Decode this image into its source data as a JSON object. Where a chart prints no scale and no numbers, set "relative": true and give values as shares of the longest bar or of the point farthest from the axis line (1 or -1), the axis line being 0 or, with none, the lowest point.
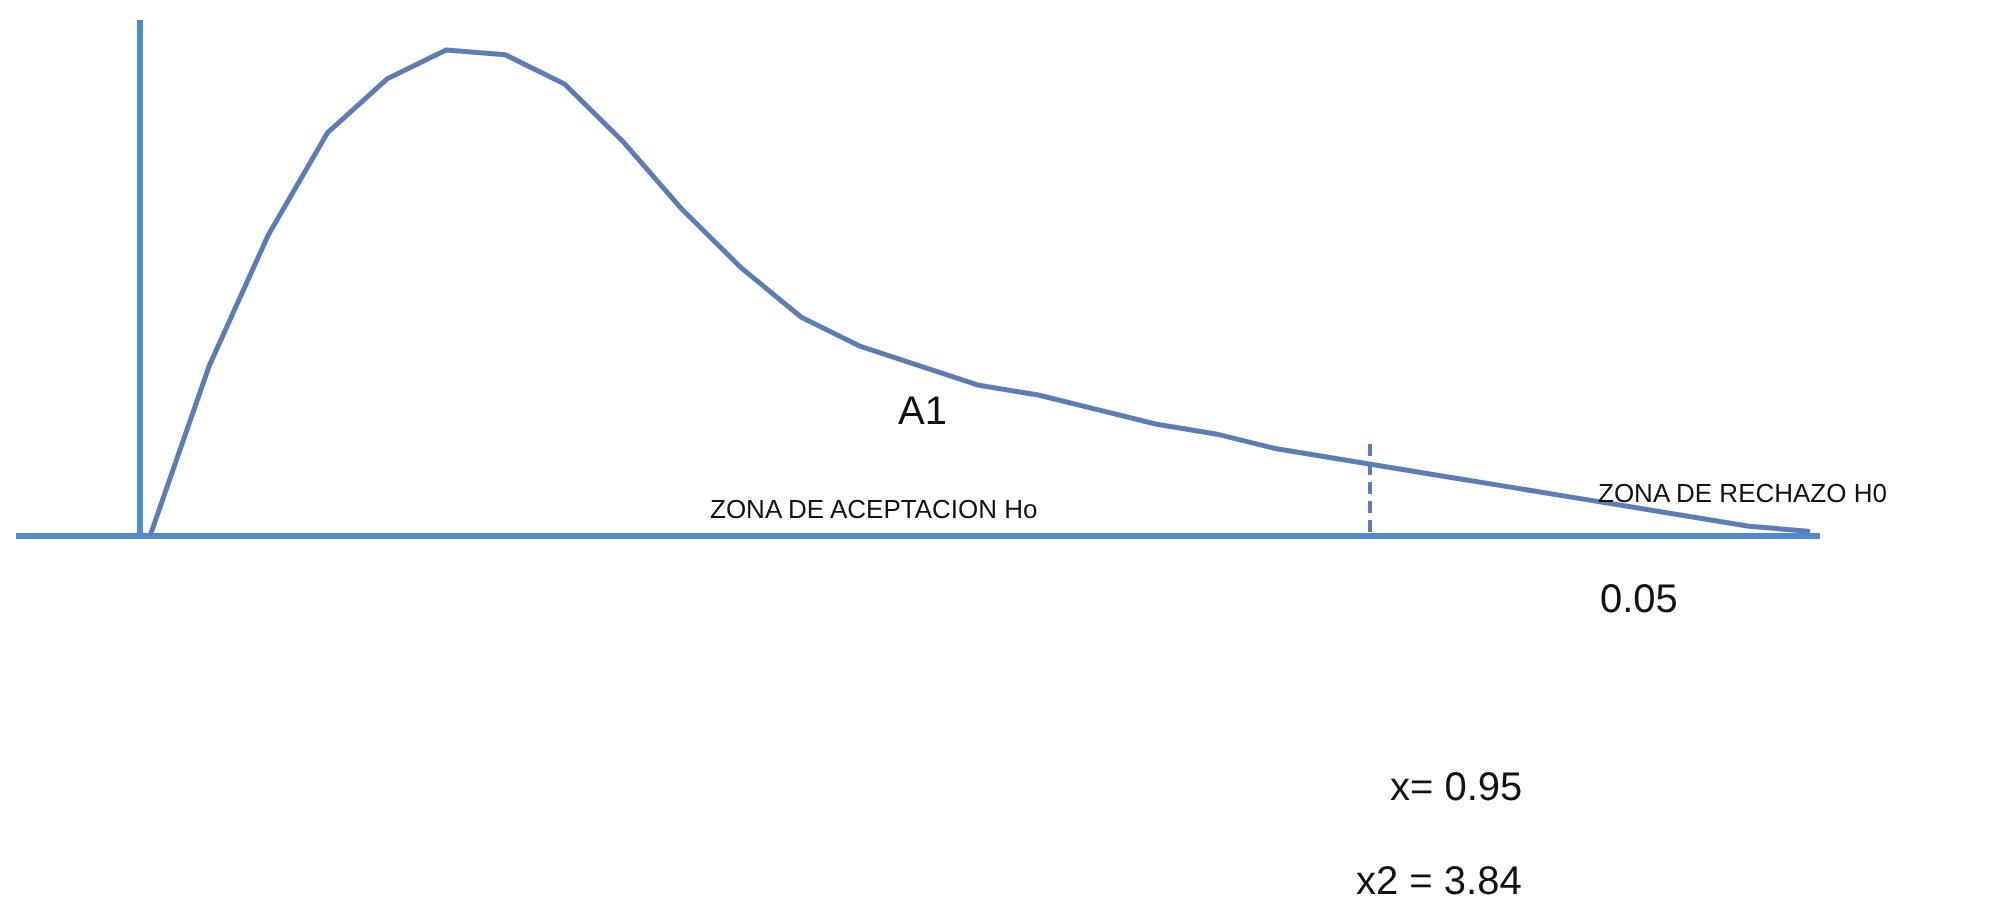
{
  "chart_data": {
    "type": "line",
    "relative": true,
    "tick_labels": false,
    "color": "#5b7db3",
    "categories": [
      null,
      null,
      null,
      null,
      null,
      null,
      null,
      null,
      null,
      null,
      null,
      null,
      null,
      null,
      null,
      null,
      null,
      null,
      null,
      null,
      null,
      null,
      null,
      null,
      null,
      null,
      null,
      null,
      null
    ],
    "values": [
      0,
      0.35,
      0.62,
      0.83,
      0.94,
      1.0,
      0.99,
      0.93,
      0.81,
      0.67,
      0.55,
      0.45,
      0.39,
      0.35,
      0.31,
      0.29,
      0.26,
      0.23,
      0.21,
      0.18,
      0.16,
      0.14,
      0.12,
      0.1,
      0.08,
      0.06,
      0.04,
      0.02,
      0.01
    ],
    "annotations": [
      "A1",
      "ZONA DE ACEPTACION Ho",
      "ZONA DE RECHAZO H0",
      "0.05",
      "x= 0.95",
      "x2 = 3.84"
    ]
  }
}
